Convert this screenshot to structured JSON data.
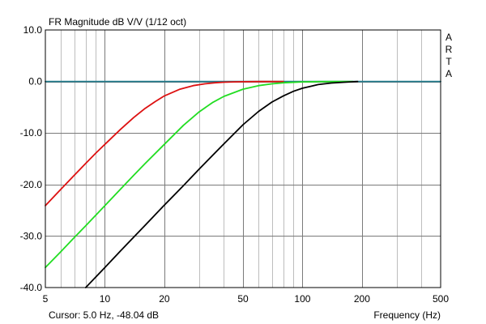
{
  "chart_data": {
    "type": "line",
    "title": "FR Magnitude dB V/V (1/12 oct)",
    "xlabel": "Frequency (Hz)",
    "ylabel": "",
    "xscale": "log",
    "xlim": [
      5,
      500
    ],
    "ylim": [
      -40,
      10
    ],
    "x_ticks": [
      5,
      10,
      20,
      50,
      100,
      200,
      500
    ],
    "x_tick_labels": [
      "5",
      "10",
      "20",
      "50",
      "100",
      "200",
      "500"
    ],
    "y_ticks": [
      10,
      0,
      -10,
      -20,
      -30,
      -40
    ],
    "y_tick_labels": [
      "10.0",
      "0.0",
      "-10.0",
      "-20.0",
      "-30.0",
      "-40.0"
    ],
    "grid": true,
    "watermark": "ARTA",
    "series": [
      {
        "color": "#1f7a8c",
        "x": [
          5,
          10,
          20,
          50,
          100,
          200,
          500
        ],
        "y": [
          0,
          0,
          0,
          0,
          0,
          0,
          0
        ]
      },
      {
        "color": "#dd1111",
        "x": [
          5,
          6,
          7,
          8,
          9,
          10,
          12,
          14,
          16,
          18,
          20,
          24,
          28,
          32,
          36,
          40,
          45,
          50,
          60,
          70,
          80
        ],
        "y": [
          -24.1,
          -20.9,
          -18.2,
          -15.9,
          -13.9,
          -12.2,
          -9.3,
          -7.0,
          -5.2,
          -3.9,
          -2.8,
          -1.5,
          -0.8,
          -0.45,
          -0.25,
          -0.14,
          -0.08,
          -0.05,
          -0.02,
          -0.01,
          0
        ]
      },
      {
        "color": "#22dd22",
        "x": [
          5,
          6,
          7,
          8,
          10,
          12,
          14,
          16,
          20,
          25,
          30,
          35,
          40,
          50,
          60,
          70,
          80,
          100,
          120,
          150,
          180
        ],
        "y": [
          -36.1,
          -33.0,
          -30.3,
          -28.0,
          -24.1,
          -20.9,
          -18.2,
          -15.9,
          -12.2,
          -8.5,
          -5.9,
          -4.1,
          -2.9,
          -1.5,
          -0.8,
          -0.45,
          -0.25,
          -0.08,
          -0.03,
          -0.01,
          0
        ]
      },
      {
        "color": "#000000",
        "x": [
          8,
          10,
          12,
          14,
          16,
          20,
          25,
          30,
          40,
          50,
          60,
          70,
          80,
          90,
          100,
          120,
          140,
          160,
          190
        ],
        "y": [
          -40.0,
          -36.1,
          -32.9,
          -30.2,
          -27.9,
          -24.0,
          -20.2,
          -17.0,
          -12.1,
          -8.4,
          -5.8,
          -4.0,
          -2.8,
          -1.9,
          -1.3,
          -0.6,
          -0.3,
          -0.15,
          0
        ]
      }
    ],
    "cursor_readout": "Cursor: 5.0 Hz, -48.04 dB"
  }
}
